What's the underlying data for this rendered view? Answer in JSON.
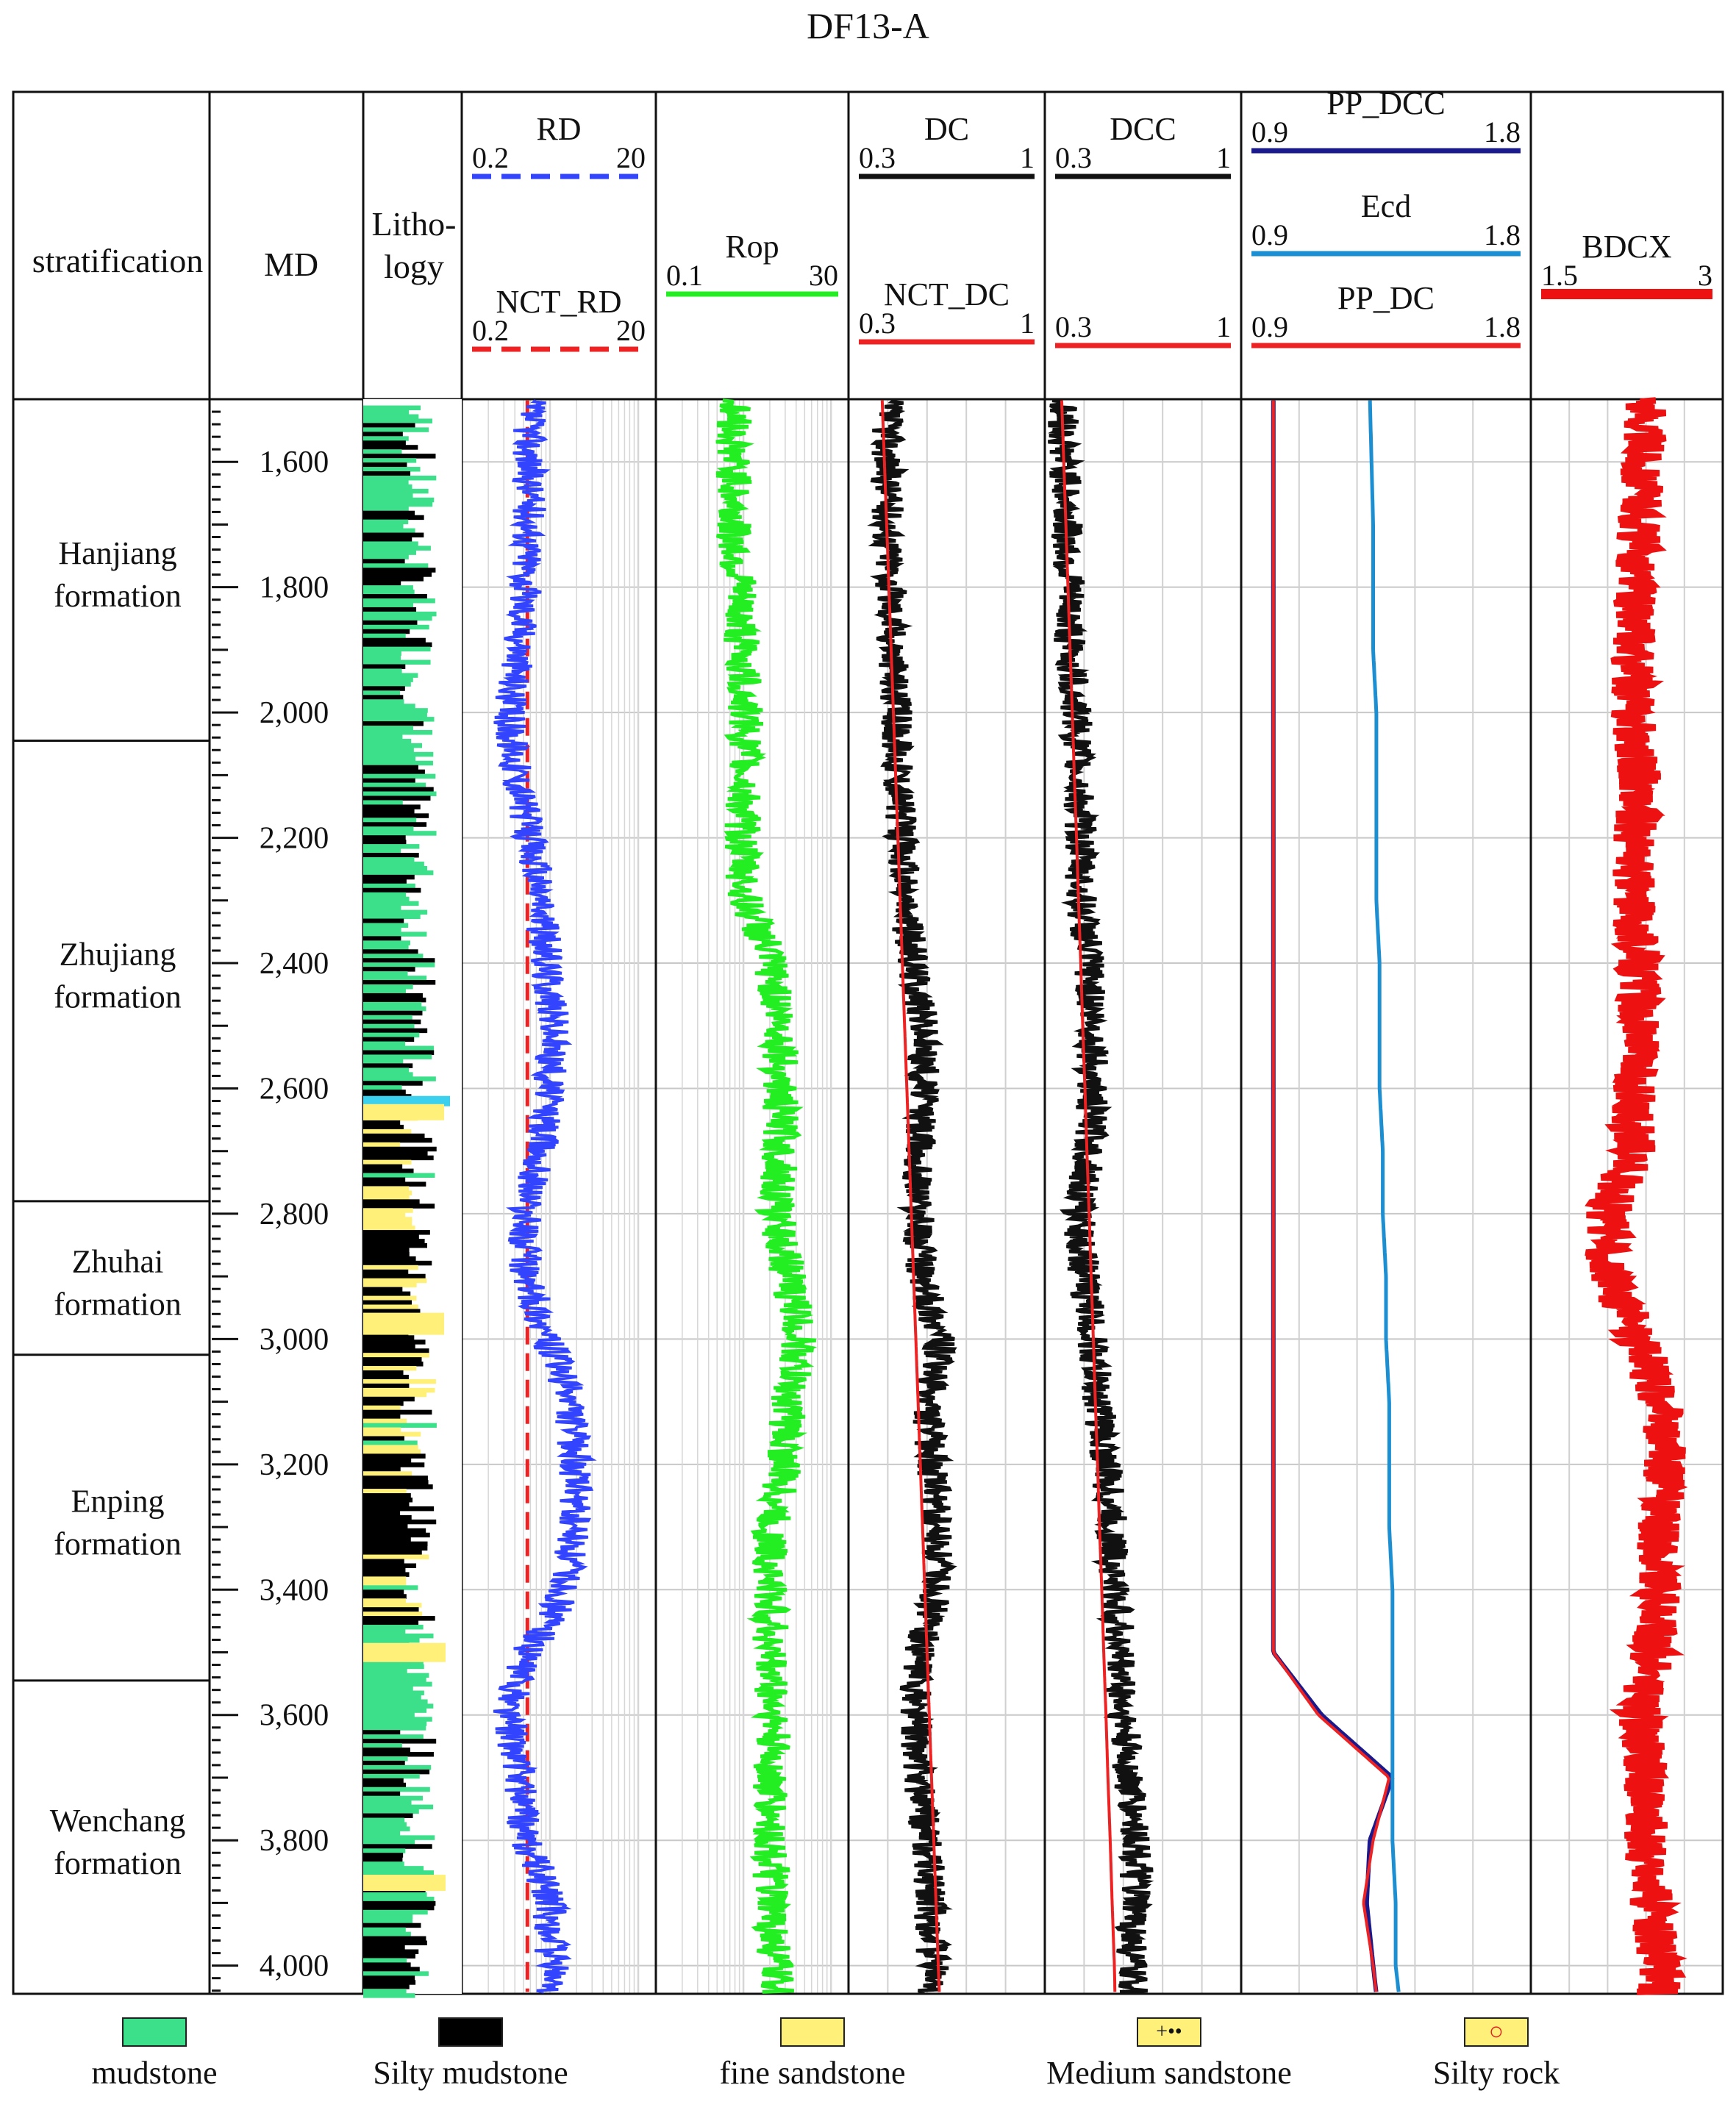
{
  "title": "DF13-A",
  "columns": {
    "stratification": "stratification",
    "md": "MD",
    "lithology": "Litho-\nlogy"
  },
  "tracks": [
    {
      "curves": [
        {
          "name": "RD",
          "min": "0.2",
          "max": "20",
          "color": "#3344ff",
          "dash": true
        },
        {
          "name": "NCT_RD",
          "min": "0.2",
          "max": "20",
          "color": "#ee2222",
          "dash": true
        }
      ]
    },
    {
      "curves": [
        {
          "name": "Rop",
          "min": "0.1",
          "max": "30",
          "color": "#22ee22",
          "dash": false
        }
      ]
    },
    {
      "curves": [
        {
          "name": "DC",
          "min": "0.3",
          "max": "1",
          "color": "#111111",
          "dash": false
        },
        {
          "name": "NCT_DC",
          "min": "0.3",
          "max": "1",
          "color": "#ee2222",
          "dash": false
        }
      ]
    },
    {
      "curves": [
        {
          "name": "DCC",
          "min": "0.3",
          "max": "1",
          "color": "#111111",
          "dash": false
        },
        {
          "name": "",
          "min": "0.3",
          "max": "1",
          "color": "#ee2222",
          "dash": false
        }
      ]
    },
    {
      "curves": [
        {
          "name": "PP_DCC",
          "min": "0.9",
          "max": "1.8",
          "color": "#1a1a8c",
          "dash": false
        },
        {
          "name": "Ecd",
          "min": "0.9",
          "max": "1.8",
          "color": "#1b8fd1",
          "dash": false
        },
        {
          "name": "PP_DC",
          "min": "0.9",
          "max": "1.8",
          "color": "#ee2222",
          "dash": false
        }
      ]
    },
    {
      "curves": [
        {
          "name": "BDCX",
          "min": "1.5",
          "max": "3",
          "color": "#ee1111",
          "dash": false
        }
      ]
    }
  ],
  "formations": [
    {
      "name": "Hanjiang\nformation",
      "top": 1500,
      "base": 2045
    },
    {
      "name": "Zhujiang\nformation",
      "top": 2045,
      "base": 2780
    },
    {
      "name": "Zhuhai\nformation",
      "top": 2780,
      "base": 3025
    },
    {
      "name": "Enping\nformation",
      "top": 3025,
      "base": 3545
    },
    {
      "name": "Wenchang\nformation",
      "top": 3545,
      "base": 4045
    }
  ],
  "legend": [
    {
      "label": "mudstone",
      "color": "#3de08a",
      "glyph": ""
    },
    {
      "label": "Silty mudstone",
      "color": "#000000",
      "glyph": ""
    },
    {
      "label": "fine sandstone",
      "color": "#fff07a",
      "glyph": ""
    },
    {
      "label": "Medium sandstone",
      "color": "#fff07a",
      "glyph": "+••"
    },
    {
      "label": "Silty rock",
      "color": "#fff07a",
      "glyph": "○"
    }
  ],
  "chart_data": {
    "type": "line",
    "title": "DF13-A",
    "ylabel": "MD",
    "ylim": [
      1500,
      4045
    ],
    "depth_ticks": [
      "1,600",
      "1,800",
      "2,000",
      "2,200",
      "2,400",
      "2,600",
      "2,800",
      "3,000",
      "3,200",
      "3,400",
      "3,600",
      "3,800",
      "4,000"
    ],
    "depth_tick_values": [
      1600,
      1800,
      2000,
      2200,
      2400,
      2600,
      2800,
      3000,
      3200,
      3400,
      3600,
      3800,
      4000
    ],
    "depth": [
      1500,
      1700,
      1900,
      2000,
      2100,
      2200,
      2300,
      2400,
      2500,
      2600,
      2700,
      2800,
      2900,
      3000,
      3100,
      3200,
      3300,
      3400,
      3500,
      3600,
      3700,
      3800,
      3900,
      4000,
      4045
    ],
    "series": [
      {
        "name": "RD",
        "values": [
          1.0,
          1.0,
          0.8,
          0.6,
          0.75,
          1.0,
          1.3,
          1.5,
          1.8,
          1.6,
          1.3,
          0.9,
          0.9,
          1.5,
          2.6,
          3.0,
          2.8,
          2.3,
          0.9,
          0.6,
          0.8,
          0.9,
          1.6,
          1.7,
          1.7
        ]
      },
      {
        "name": "NCT_RD",
        "values": [
          0.95,
          0.95,
          0.95,
          0.95,
          0.95,
          0.95,
          0.95,
          0.95,
          0.95,
          0.95,
          0.95,
          0.95,
          0.95,
          0.95,
          0.95,
          0.95,
          0.95,
          0.95,
          0.95,
          0.95,
          0.95,
          0.95,
          0.95,
          0.95,
          0.95
        ]
      },
      {
        "name": "Rop",
        "values": [
          1.0,
          1.0,
          1.3,
          1.4,
          1.4,
          1.3,
          1.4,
          3.0,
          4.0,
          4.0,
          4.0,
          3.5,
          5.0,
          7.0,
          5.0,
          4.5,
          3.0,
          3.0,
          3.0,
          3.3,
          3.0,
          3.0,
          3.0,
          3.5,
          3.5
        ]
      },
      {
        "name": "DC",
        "values": [
          0.44,
          0.44,
          0.46,
          0.47,
          0.48,
          0.49,
          0.5,
          0.53,
          0.57,
          0.57,
          0.55,
          0.55,
          0.56,
          0.63,
          0.58,
          0.6,
          0.61,
          0.62,
          0.55,
          0.54,
          0.55,
          0.58,
          0.59,
          0.6,
          0.6
        ]
      },
      {
        "name": "NCT_DC",
        "values": [
          0.42,
          0.436,
          0.452,
          0.46,
          0.468,
          0.476,
          0.484,
          0.492,
          0.5,
          0.508,
          0.516,
          0.524,
          0.532,
          0.54,
          0.548,
          0.556,
          0.564,
          0.572,
          0.58,
          0.588,
          0.596,
          0.604,
          0.612,
          0.62,
          0.624
        ]
      },
      {
        "name": "DCC",
        "values": [
          0.36,
          0.38,
          0.39,
          0.41,
          0.42,
          0.43,
          0.43,
          0.46,
          0.47,
          0.47,
          0.46,
          0.42,
          0.44,
          0.47,
          0.49,
          0.52,
          0.54,
          0.55,
          0.57,
          0.58,
          0.6,
          0.63,
          0.62,
          0.61,
          0.61
        ]
      },
      {
        "name": "NCT_DCC",
        "values": [
          0.36,
          0.375,
          0.39,
          0.398,
          0.405,
          0.413,
          0.42,
          0.428,
          0.435,
          0.443,
          0.45,
          0.458,
          0.465,
          0.473,
          0.48,
          0.488,
          0.495,
          0.503,
          0.51,
          0.518,
          0.525,
          0.533,
          0.54,
          0.548,
          0.55
        ]
      },
      {
        "name": "Ecd",
        "values": [
          1.3,
          1.31,
          1.31,
          1.32,
          1.32,
          1.32,
          1.32,
          1.33,
          1.33,
          1.33,
          1.34,
          1.34,
          1.35,
          1.35,
          1.36,
          1.36,
          1.36,
          1.37,
          1.37,
          1.37,
          1.37,
          1.37,
          1.38,
          1.38,
          1.39
        ]
      },
      {
        "name": "PP_DCC",
        "values": [
          1.0,
          1.0,
          1.0,
          1.0,
          1.0,
          1.0,
          1.0,
          1.0,
          1.0,
          1.0,
          1.0,
          1.0,
          1.0,
          1.0,
          1.0,
          1.0,
          1.0,
          1.0,
          1.0,
          1.15,
          1.37,
          1.3,
          1.29,
          1.31,
          1.32
        ]
      },
      {
        "name": "PP_DC",
        "values": [
          1.0,
          1.0,
          1.0,
          1.0,
          1.0,
          1.0,
          1.0,
          1.0,
          1.0,
          1.0,
          1.0,
          1.0,
          1.0,
          1.0,
          1.0,
          1.0,
          1.0,
          1.0,
          1.0,
          1.14,
          1.36,
          1.31,
          1.28,
          1.31,
          1.32
        ]
      },
      {
        "name": "BDCX",
        "values": [
          2.4,
          2.35,
          2.3,
          2.3,
          2.35,
          2.3,
          2.3,
          2.35,
          2.35,
          2.3,
          2.3,
          2.1,
          2.1,
          2.35,
          2.5,
          2.55,
          2.5,
          2.5,
          2.45,
          2.35,
          2.4,
          2.4,
          2.45,
          2.5,
          2.5
        ]
      }
    ]
  }
}
